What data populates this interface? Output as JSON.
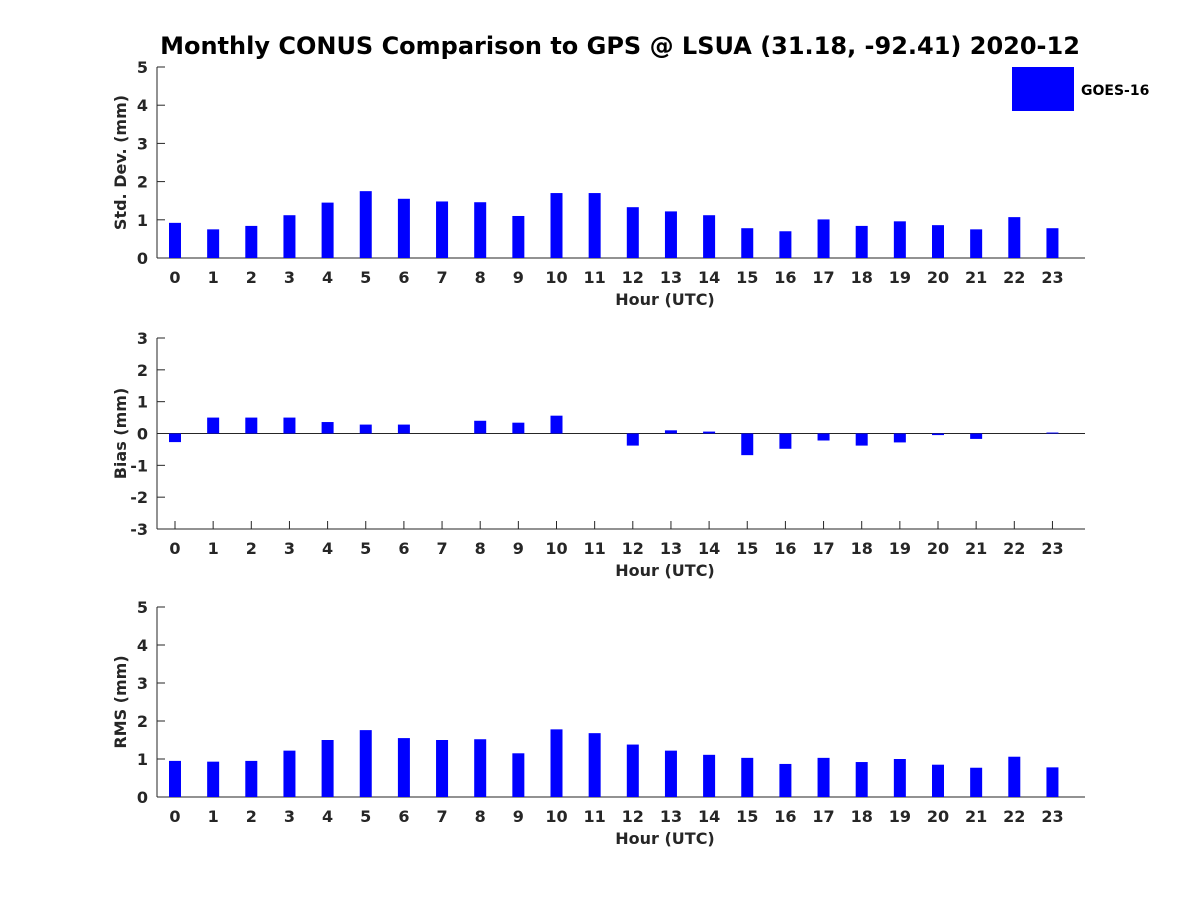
{
  "figure": {
    "title": "Monthly CONUS Comparison to GPS @ LSUA (31.18, -92.41) 2020-12",
    "legend": {
      "label": "GOES-16",
      "placement": "top-right",
      "color": "#0000ff"
    }
  },
  "chart_data": [
    {
      "type": "bar",
      "categories": [
        "0",
        "1",
        "2",
        "3",
        "4",
        "5",
        "6",
        "7",
        "8",
        "9",
        "10",
        "11",
        "12",
        "13",
        "14",
        "15",
        "16",
        "17",
        "18",
        "19",
        "20",
        "21",
        "22",
        "23"
      ],
      "series": [
        {
          "name": "GOES-16",
          "values": [
            0.92,
            0.75,
            0.84,
            1.12,
            1.45,
            1.75,
            1.55,
            1.48,
            1.46,
            1.1,
            1.7,
            1.7,
            1.33,
            1.22,
            1.12,
            0.78,
            0.7,
            1.01,
            0.84,
            0.96,
            0.86,
            0.75,
            1.07,
            0.78
          ]
        }
      ],
      "xlabel": "Hour (UTC)",
      "ylabel": "Std. Dev. (mm)",
      "ylim": [
        0,
        5
      ],
      "yticks": [
        "0",
        "1",
        "2",
        "3",
        "4",
        "5"
      ],
      "bar_color": "#0000ff",
      "grid": false
    },
    {
      "type": "bar",
      "categories": [
        "0",
        "1",
        "2",
        "3",
        "4",
        "5",
        "6",
        "7",
        "8",
        "9",
        "10",
        "11",
        "12",
        "13",
        "14",
        "15",
        "16",
        "17",
        "18",
        "19",
        "20",
        "21",
        "22",
        "23"
      ],
      "series": [
        {
          "name": "GOES-16",
          "values": [
            -0.27,
            0.5,
            0.5,
            0.5,
            0.36,
            0.28,
            0.28,
            0.0,
            0.4,
            0.34,
            0.56,
            0.0,
            -0.38,
            0.1,
            0.06,
            -0.68,
            -0.48,
            -0.22,
            -0.38,
            -0.28,
            -0.05,
            -0.17,
            0.0,
            0.03
          ]
        }
      ],
      "xlabel": "Hour (UTC)",
      "ylabel": "Bias (mm)",
      "ylim": [
        -3,
        3
      ],
      "yticks": [
        "-3",
        "-2",
        "-1",
        "0",
        "1",
        "2",
        "3"
      ],
      "bar_color": "#0000ff",
      "zero_line": true,
      "grid": false
    },
    {
      "type": "bar",
      "categories": [
        "0",
        "1",
        "2",
        "3",
        "4",
        "5",
        "6",
        "7",
        "8",
        "9",
        "10",
        "11",
        "12",
        "13",
        "14",
        "15",
        "16",
        "17",
        "18",
        "19",
        "20",
        "21",
        "22",
        "23"
      ],
      "series": [
        {
          "name": "GOES-16",
          "values": [
            0.95,
            0.93,
            0.95,
            1.22,
            1.5,
            1.76,
            1.55,
            1.5,
            1.52,
            1.15,
            1.78,
            1.68,
            1.38,
            1.22,
            1.11,
            1.03,
            0.87,
            1.03,
            0.92,
            1.0,
            0.85,
            0.77,
            1.06,
            0.78
          ]
        }
      ],
      "xlabel": "Hour (UTC)",
      "ylabel": "RMS (mm)",
      "ylim": [
        0,
        5
      ],
      "yticks": [
        "0",
        "1",
        "2",
        "3",
        "4",
        "5"
      ],
      "bar_color": "#0000ff",
      "grid": false
    }
  ]
}
